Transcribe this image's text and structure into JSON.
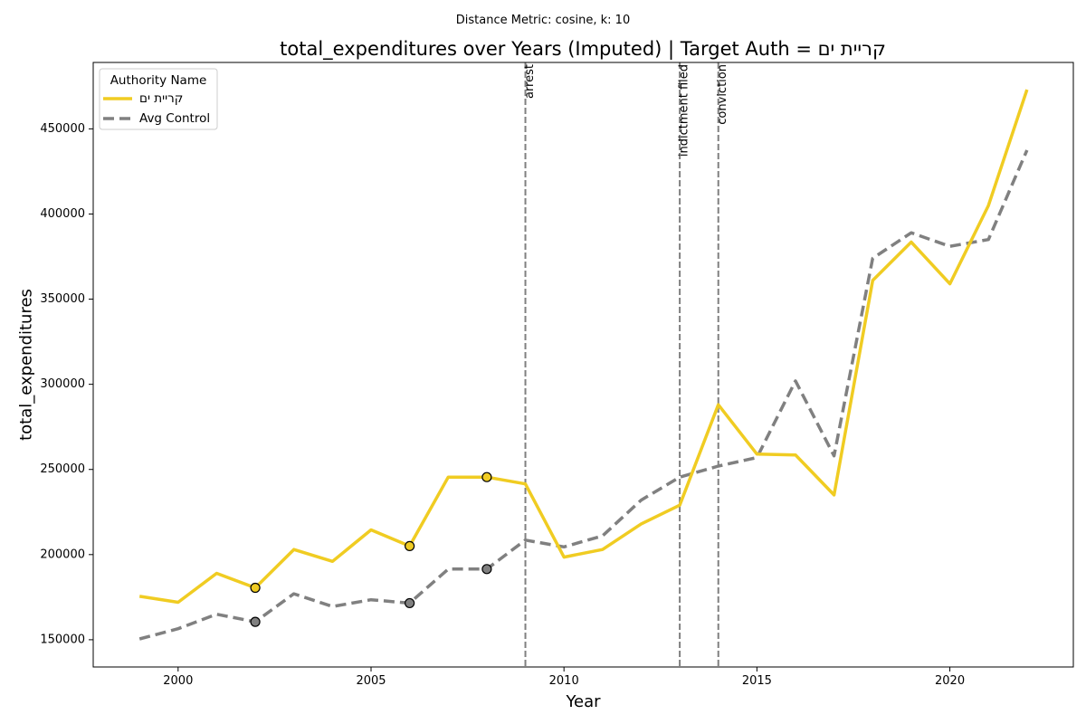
{
  "chart_data": {
    "type": "line",
    "suptitle": "Distance Metric: cosine, k: 10",
    "title": "total_expenditures over Years (Imputed) | Target Auth = קריית ים",
    "xlabel": "Year",
    "ylabel": "total_expenditures",
    "xlim": [
      1997.8,
      2023.2
    ],
    "ylim": [
      134000,
      489000
    ],
    "x_ticks": [
      2000,
      2005,
      2010,
      2015,
      2020
    ],
    "y_ticks": [
      150000,
      200000,
      250000,
      300000,
      350000,
      400000,
      450000
    ],
    "grid": false,
    "legend": {
      "title": "Authority Name",
      "placement": "top-left"
    },
    "x": [
      1999,
      2000,
      2001,
      2002,
      2003,
      2004,
      2005,
      2006,
      2007,
      2008,
      2009,
      2010,
      2011,
      2012,
      2013,
      2014,
      2015,
      2016,
      2017,
      2018,
      2019,
      2020,
      2021,
      2022
    ],
    "series": [
      {
        "name": "קריית ים",
        "color": "#f0cc22",
        "style": "solid",
        "values": [
          175500,
          172000,
          189000,
          180500,
          203000,
          196000,
          214500,
          205000,
          245500,
          245500,
          241500,
          198500,
          203000,
          218000,
          229000,
          288000,
          259000,
          258500,
          235000,
          361000,
          383500,
          359000,
          405000,
          473000
        ]
      },
      {
        "name": "Avg Control",
        "color": "#808080",
        "style": "dashed",
        "values": [
          150500,
          156500,
          165000,
          160500,
          177000,
          169500,
          173500,
          171500,
          191500,
          191500,
          208500,
          204500,
          211000,
          232000,
          245500,
          252000,
          257000,
          302000,
          258000,
          374000,
          389000,
          381000,
          385000,
          437500
        ]
      }
    ],
    "imputed_points": [
      {
        "x": 2002,
        "target": 180500,
        "control": 160500
      },
      {
        "x": 2006,
        "target": 205000,
        "control": 171500
      },
      {
        "x": 2008,
        "target": 245500,
        "control": 191500
      }
    ],
    "events": [
      {
        "x": 2009,
        "label": "arrest"
      },
      {
        "x": 2013,
        "label": "indictment filed"
      },
      {
        "x": 2014,
        "label": "conviction"
      }
    ]
  }
}
